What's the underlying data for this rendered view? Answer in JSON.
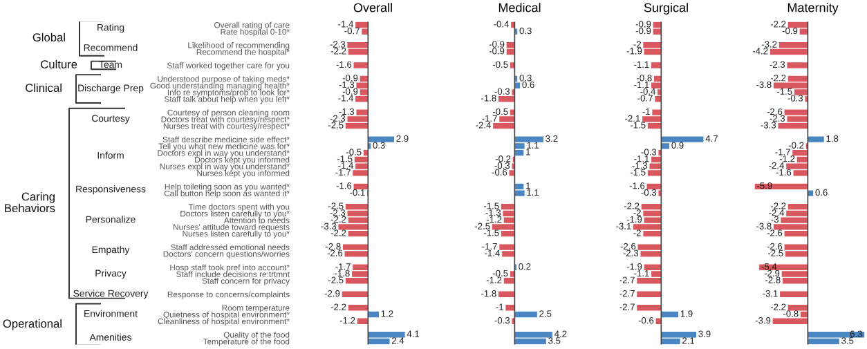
{
  "chart_data": [
    {
      "type": "bar",
      "orientation": "horizontal",
      "title": "Overall",
      "data_labels": true,
      "ref_lines": [
        {
          "axis": "x",
          "value": 0
        }
      ],
      "tick_labels": "y",
      "categories": [
        "Overall rating of care",
        "Rate hospital 0-10*",
        null,
        "Likelihood of recommending",
        "Recommend the hospital*",
        null,
        "Staff worked together care for you",
        null,
        "Understood purpose of taking meds*",
        "Good understanding managing health*",
        "Info re symptoms/prob to look for*",
        "Staff talk about help when you left*",
        null,
        "Courtesy of person cleaning room",
        "Doctors treat with courtesy/respect*",
        "Nurses treat with courtesy/respect*",
        null,
        "Staff describe medicine side effect*",
        "Tell you what new medicine was for*",
        "Doctors expl in way you understand*",
        "Doctors kept you informed",
        "Nurses expl in way you understand*",
        "Nurses kept you informed",
        null,
        "Help toileting soon as you wanted*",
        "Call button help soon as wanted it*",
        null,
        "Time doctors spent with you",
        "Doctors listen carefully to you*",
        "Attention to needs",
        "Nurses' attitude toward requests",
        "Nurses listen carefully to you*",
        null,
        "Staff addressed emotional needs",
        "Doctors' concern questions/worries",
        null,
        "Hosp staff took pref into account*",
        "Staff include decisions re:trtmnt",
        "Staff concern for privacy",
        null,
        "Response to concerns/complaints",
        null,
        "Room temperature",
        "Quietness of hospital environment*",
        "Cleanliness of hospital environment*",
        null,
        "Quality of the food",
        "Temperature of the food"
      ],
      "values": [
        -1.4,
        -0.7,
        null,
        -2.3,
        -2.2,
        null,
        -1.6,
        null,
        -0.9,
        -1.3,
        -0.9,
        -1.4,
        null,
        -1.3,
        -2.3,
        -2.5,
        null,
        2.9,
        0.3,
        -0.5,
        -1.5,
        -1.4,
        -1.7,
        null,
        -1.6,
        -0.1,
        null,
        -2.5,
        -2.3,
        -2.2,
        -3.3,
        -2.2,
        null,
        -2.8,
        -2.6,
        null,
        -1.7,
        -1.8,
        -2.5,
        null,
        -2.9,
        null,
        -2.2,
        1.2,
        -1.2,
        null,
        4.1,
        2.4
      ],
      "colors": [
        "#d9575e",
        "#d9575e",
        null,
        "#d9575e",
        "#d9575e",
        null,
        "#d9575e",
        null,
        "#d9575e",
        "#d9575e",
        "#d9575e",
        "#d9575e",
        null,
        "#d9575e",
        "#d9575e",
        "#d9575e",
        null,
        "#4a86c1",
        "#4a86c1",
        "#d9575e",
        "#d9575e",
        "#d9575e",
        "#d9575e",
        null,
        "#d9575e",
        "#d9575e",
        null,
        "#d9575e",
        "#d9575e",
        "#d9575e",
        "#d9575e",
        "#d9575e",
        null,
        "#d9575e",
        "#d9575e",
        null,
        "#d9575e",
        "#d9575e",
        "#d9575e",
        null,
        "#d9575e",
        null,
        "#d9575e",
        "#4a86c1",
        "#d9575e",
        null,
        "#4a86c1",
        "#4a86c1"
      ],
      "annotations": [
        "Rating",
        "Recommend",
        "Team",
        "Discharge Prep",
        "Courtesy",
        "Inform",
        "Responsiveness",
        "Personalize",
        "Empathy",
        "Privacy",
        "Service Recovery",
        "Environment",
        "Amenities",
        "Global",
        "Culture",
        "Clinical",
        "Caring\nBehaviors",
        "Operational"
      ]
    },
    {
      "type": "bar",
      "orientation": "horizontal",
      "title": "Medical",
      "data_labels": true,
      "ref_lines": [
        {
          "axis": "x",
          "value": 0
        }
      ],
      "tick_labels": false,
      "values": [
        -0.4,
        0.3,
        null,
        -0.9,
        -0.9,
        null,
        -0.5,
        null,
        0.3,
        0.6,
        -0.3,
        -1.8,
        null,
        -0.5,
        -1.7,
        -2.4,
        null,
        3.2,
        1.1,
        1,
        -0.2,
        -0.3,
        -0.6,
        null,
        1,
        1.1,
        null,
        -1.5,
        -1.3,
        -1.2,
        -2.5,
        -1.5,
        null,
        -1.7,
        -1.4,
        null,
        0.2,
        -0.5,
        -1.2,
        null,
        -1.8,
        null,
        -1,
        2.5,
        -0.3,
        null,
        4.2,
        3.5
      ],
      "colors": [
        "#d9575e",
        "#4a86c1",
        null,
        "#d9575e",
        "#d9575e",
        null,
        "#d9575e",
        null,
        "#4a86c1",
        "#4a86c1",
        "#d9575e",
        "#d9575e",
        null,
        "#d9575e",
        "#d9575e",
        "#d9575e",
        null,
        "#4a86c1",
        "#4a86c1",
        "#4a86c1",
        "#d9575e",
        "#d9575e",
        "#d9575e",
        null,
        "#4a86c1",
        "#4a86c1",
        null,
        "#d9575e",
        "#d9575e",
        "#d9575e",
        "#d9575e",
        "#d9575e",
        null,
        "#d9575e",
        "#d9575e",
        null,
        "#4a86c1",
        "#d9575e",
        "#d9575e",
        null,
        "#d9575e",
        null,
        "#d9575e",
        "#4a86c1",
        "#d9575e",
        null,
        "#4a86c1",
        "#4a86c1"
      ]
    },
    {
      "type": "bar",
      "orientation": "horizontal",
      "title": "Surgical",
      "data_labels": true,
      "ref_lines": [
        {
          "axis": "x",
          "value": 0
        }
      ],
      "tick_labels": false,
      "values": [
        -0.9,
        -0.9,
        null,
        -2,
        -1.9,
        null,
        -1.1,
        null,
        -0.8,
        -1.1,
        -0.4,
        -0.7,
        null,
        -1,
        -2.1,
        -1.5,
        null,
        4.7,
        0.9,
        -0.3,
        -1.1,
        -1.3,
        -1.5,
        null,
        -1.6,
        -0.3,
        null,
        -2.2,
        -2,
        -1.9,
        -3.1,
        -2,
        null,
        -2.6,
        -2.3,
        null,
        -1.9,
        -1.1,
        -2.7,
        null,
        -2.7,
        null,
        -2.7,
        1.9,
        -0.6,
        null,
        3.9,
        2.1
      ],
      "colors": [
        "#d9575e",
        "#d9575e",
        null,
        "#d9575e",
        "#d9575e",
        null,
        "#d9575e",
        null,
        "#d9575e",
        "#d9575e",
        "#d9575e",
        "#d9575e",
        null,
        "#d9575e",
        "#d9575e",
        "#d9575e",
        null,
        "#4a86c1",
        "#4a86c1",
        "#d9575e",
        "#d9575e",
        "#d9575e",
        "#d9575e",
        null,
        "#d9575e",
        "#d9575e",
        null,
        "#d9575e",
        "#d9575e",
        "#d9575e",
        "#d9575e",
        "#d9575e",
        null,
        "#d9575e",
        "#d9575e",
        null,
        "#d9575e",
        "#d9575e",
        "#d9575e",
        null,
        "#d9575e",
        null,
        "#d9575e",
        "#4a86c1",
        "#d9575e",
        null,
        "#4a86c1",
        "#4a86c1"
      ]
    },
    {
      "type": "bar",
      "orientation": "horizontal",
      "title": "Maternity",
      "data_labels": true,
      "ref_lines": [
        {
          "axis": "x",
          "value": 0
        }
      ],
      "tick_labels": false,
      "values": [
        -2.2,
        -0.9,
        null,
        -3.2,
        -4.2,
        null,
        -2.3,
        null,
        -2.2,
        -3.8,
        -1.5,
        -0.3,
        null,
        -2.6,
        -2.3,
        -3.3,
        null,
        1.8,
        -0.2,
        -1.7,
        -1.2,
        -2.4,
        -1.6,
        null,
        -5.9,
        0.6,
        null,
        -2.2,
        -2.4,
        -3,
        -3.8,
        -2.6,
        null,
        -2.6,
        -2.5,
        null,
        -5.4,
        -2.9,
        -2.8,
        null,
        -3.1,
        null,
        -2.2,
        -0.8,
        -3.9,
        null,
        6.3,
        3.5
      ],
      "colors": [
        "#d9575e",
        "#d9575e",
        null,
        "#d9575e",
        "#d9575e",
        null,
        "#d9575e",
        null,
        "#d9575e",
        "#d9575e",
        "#d9575e",
        "#d9575e",
        null,
        "#d9575e",
        "#d9575e",
        "#d9575e",
        null,
        "#4a86c1",
        "#d9575e",
        "#d9575e",
        "#d9575e",
        "#d9575e",
        "#d9575e",
        null,
        "#d9575e",
        "#4a86c1",
        null,
        "#d9575e",
        "#d9575e",
        "#d9575e",
        "#d9575e",
        "#d9575e",
        null,
        "#d9575e",
        "#d9575e",
        null,
        "#d9575e",
        "#d9575e",
        "#d9575e",
        null,
        "#d9575e",
        null,
        "#d9575e",
        "#d9575e",
        "#d9575e",
        null,
        "#4a86c1",
        "#4a86c1"
      ]
    }
  ]
}
